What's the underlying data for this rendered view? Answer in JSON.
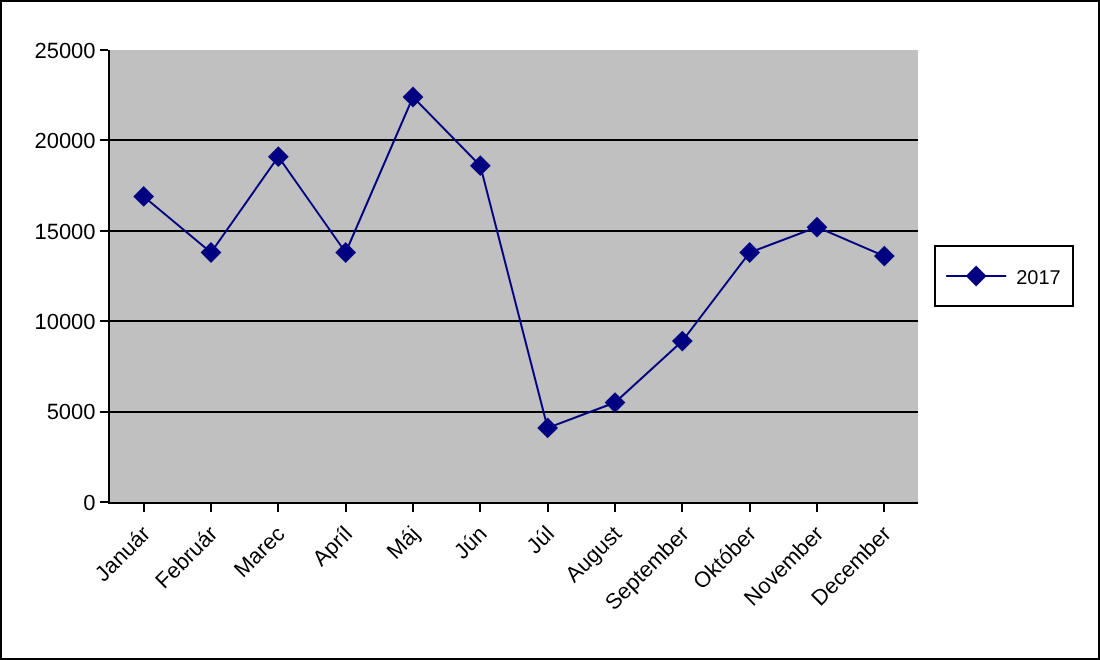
{
  "chart_data": {
    "type": "line",
    "categories": [
      "Január",
      "Február",
      "Marec",
      "Apríl",
      "Máj",
      "Jún",
      "Júl",
      "August",
      "September",
      "Október",
      "November",
      "December"
    ],
    "series": [
      {
        "name": "2017",
        "color": "#000080",
        "values": [
          16900,
          13800,
          19100,
          13800,
          22400,
          18600,
          4100,
          5500,
          8900,
          13800,
          15200,
          13600
        ]
      }
    ],
    "ylim": [
      0,
      25000
    ],
    "yticks": [
      0,
      5000,
      10000,
      15000,
      20000,
      25000
    ],
    "grid": "y",
    "legend": "right",
    "marker": "diamond",
    "line_style": "solid"
  }
}
